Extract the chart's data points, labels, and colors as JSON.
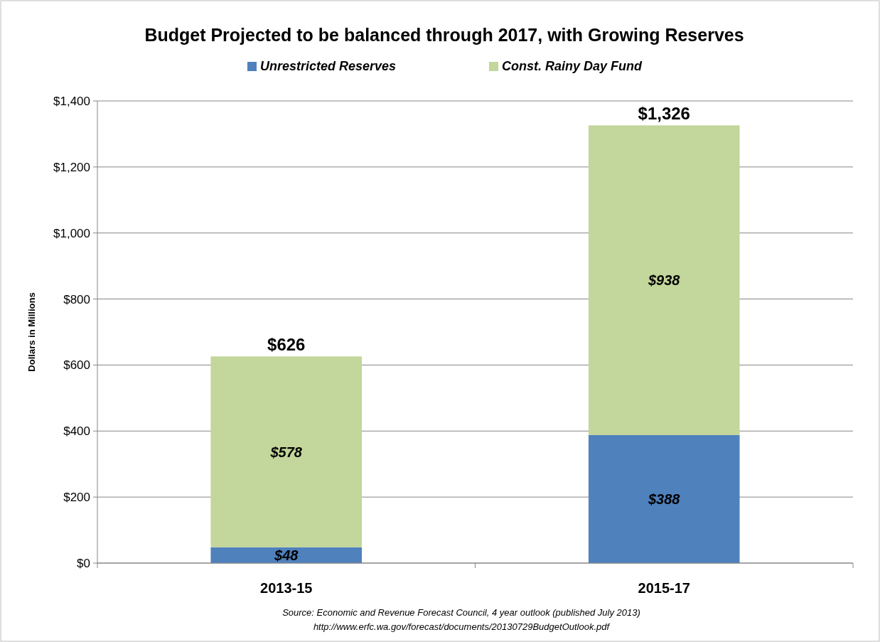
{
  "chart_data": {
    "type": "bar",
    "title": "Budget Projected to be balanced through 2017, with Growing Reserves",
    "ylabel": "Dollars in Millions",
    "categories": [
      "2013-15",
      "2015-17"
    ],
    "series": [
      {
        "name": "Unrestricted Reserves",
        "color": "#4f81bd",
        "values": [
          48,
          388
        ],
        "value_labels": [
          "$48",
          "$388"
        ]
      },
      {
        "name": "Const. Rainy Day Fund",
        "color": "#c3d69b",
        "values": [
          578,
          938
        ],
        "value_labels": [
          "$578",
          "$938"
        ]
      }
    ],
    "stacked": true,
    "totals": [
      "$626",
      "$1,326"
    ],
    "ylim": [
      0,
      1400
    ],
    "yticks": [
      {
        "value": 0,
        "label": "$0"
      },
      {
        "value": 200,
        "label": "$200"
      },
      {
        "value": 400,
        "label": "$400"
      },
      {
        "value": 600,
        "label": "$600"
      },
      {
        "value": 800,
        "label": "$800"
      },
      {
        "value": 1000,
        "label": "$1,000"
      },
      {
        "value": 1200,
        "label": "$1,200"
      },
      {
        "value": 1400,
        "label": "$1,400"
      }
    ],
    "grid": "y",
    "legend": "top",
    "annotations": [
      "Source: Economic and Revenue Forecast Council, 4 year outlook (published July 2013)",
      "http://www.erfc.wa.gov/forecast/documents/20130729BudgetOutlook.pdf"
    ]
  }
}
